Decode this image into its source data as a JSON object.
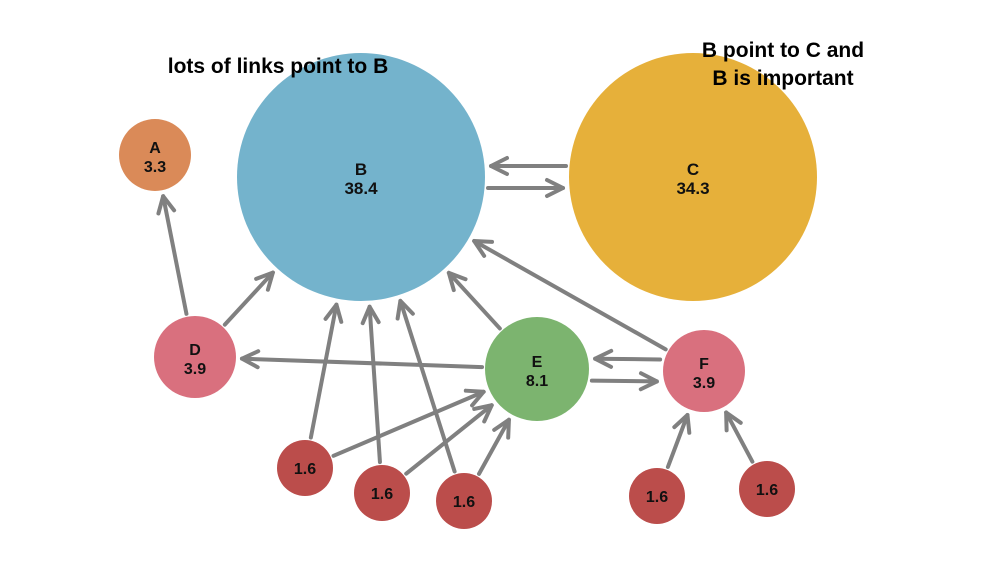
{
  "annotations": {
    "left": "lots of links point to B",
    "right_line1": "B point to C and",
    "right_line2": "B is important"
  },
  "colors": {
    "edge": "#808080",
    "blue": "#74b3cc",
    "gold": "#e6b03a",
    "orange": "#da8a58",
    "pink": "#d9707e",
    "green": "#7cb46f",
    "red": "#bb4d4b"
  },
  "nodes": [
    {
      "id": "A",
      "name": "A",
      "score": "3.3",
      "color": "orange"
    },
    {
      "id": "B",
      "name": "B",
      "score": "38.4",
      "color": "blue"
    },
    {
      "id": "C",
      "name": "C",
      "score": "34.3",
      "color": "gold"
    },
    {
      "id": "D",
      "name": "D",
      "score": "3.9",
      "color": "pink"
    },
    {
      "id": "E",
      "name": "E",
      "score": "8.1",
      "color": "green"
    },
    {
      "id": "F",
      "name": "F",
      "score": "3.9",
      "color": "pink"
    },
    {
      "id": "L1",
      "name": "",
      "score": "1.6",
      "color": "red"
    },
    {
      "id": "L2",
      "name": "",
      "score": "1.6",
      "color": "red"
    },
    {
      "id": "L3",
      "name": "",
      "score": "1.6",
      "color": "red"
    },
    {
      "id": "L4",
      "name": "",
      "score": "1.6",
      "color": "red"
    },
    {
      "id": "L5",
      "name": "",
      "score": "1.6",
      "color": "red"
    }
  ],
  "edges": [
    {
      "from": "B",
      "to": "C"
    },
    {
      "from": "C",
      "to": "B"
    },
    {
      "from": "D",
      "to": "A"
    },
    {
      "from": "D",
      "to": "B"
    },
    {
      "from": "E",
      "to": "D"
    },
    {
      "from": "E",
      "to": "B"
    },
    {
      "from": "E",
      "to": "F"
    },
    {
      "from": "F",
      "to": "E"
    },
    {
      "from": "F",
      "to": "B"
    },
    {
      "from": "L1",
      "to": "B"
    },
    {
      "from": "L1",
      "to": "E"
    },
    {
      "from": "L2",
      "to": "B"
    },
    {
      "from": "L2",
      "to": "E"
    },
    {
      "from": "L3",
      "to": "B"
    },
    {
      "from": "L3",
      "to": "E"
    },
    {
      "from": "L4",
      "to": "F"
    },
    {
      "from": "L5",
      "to": "F"
    }
  ]
}
